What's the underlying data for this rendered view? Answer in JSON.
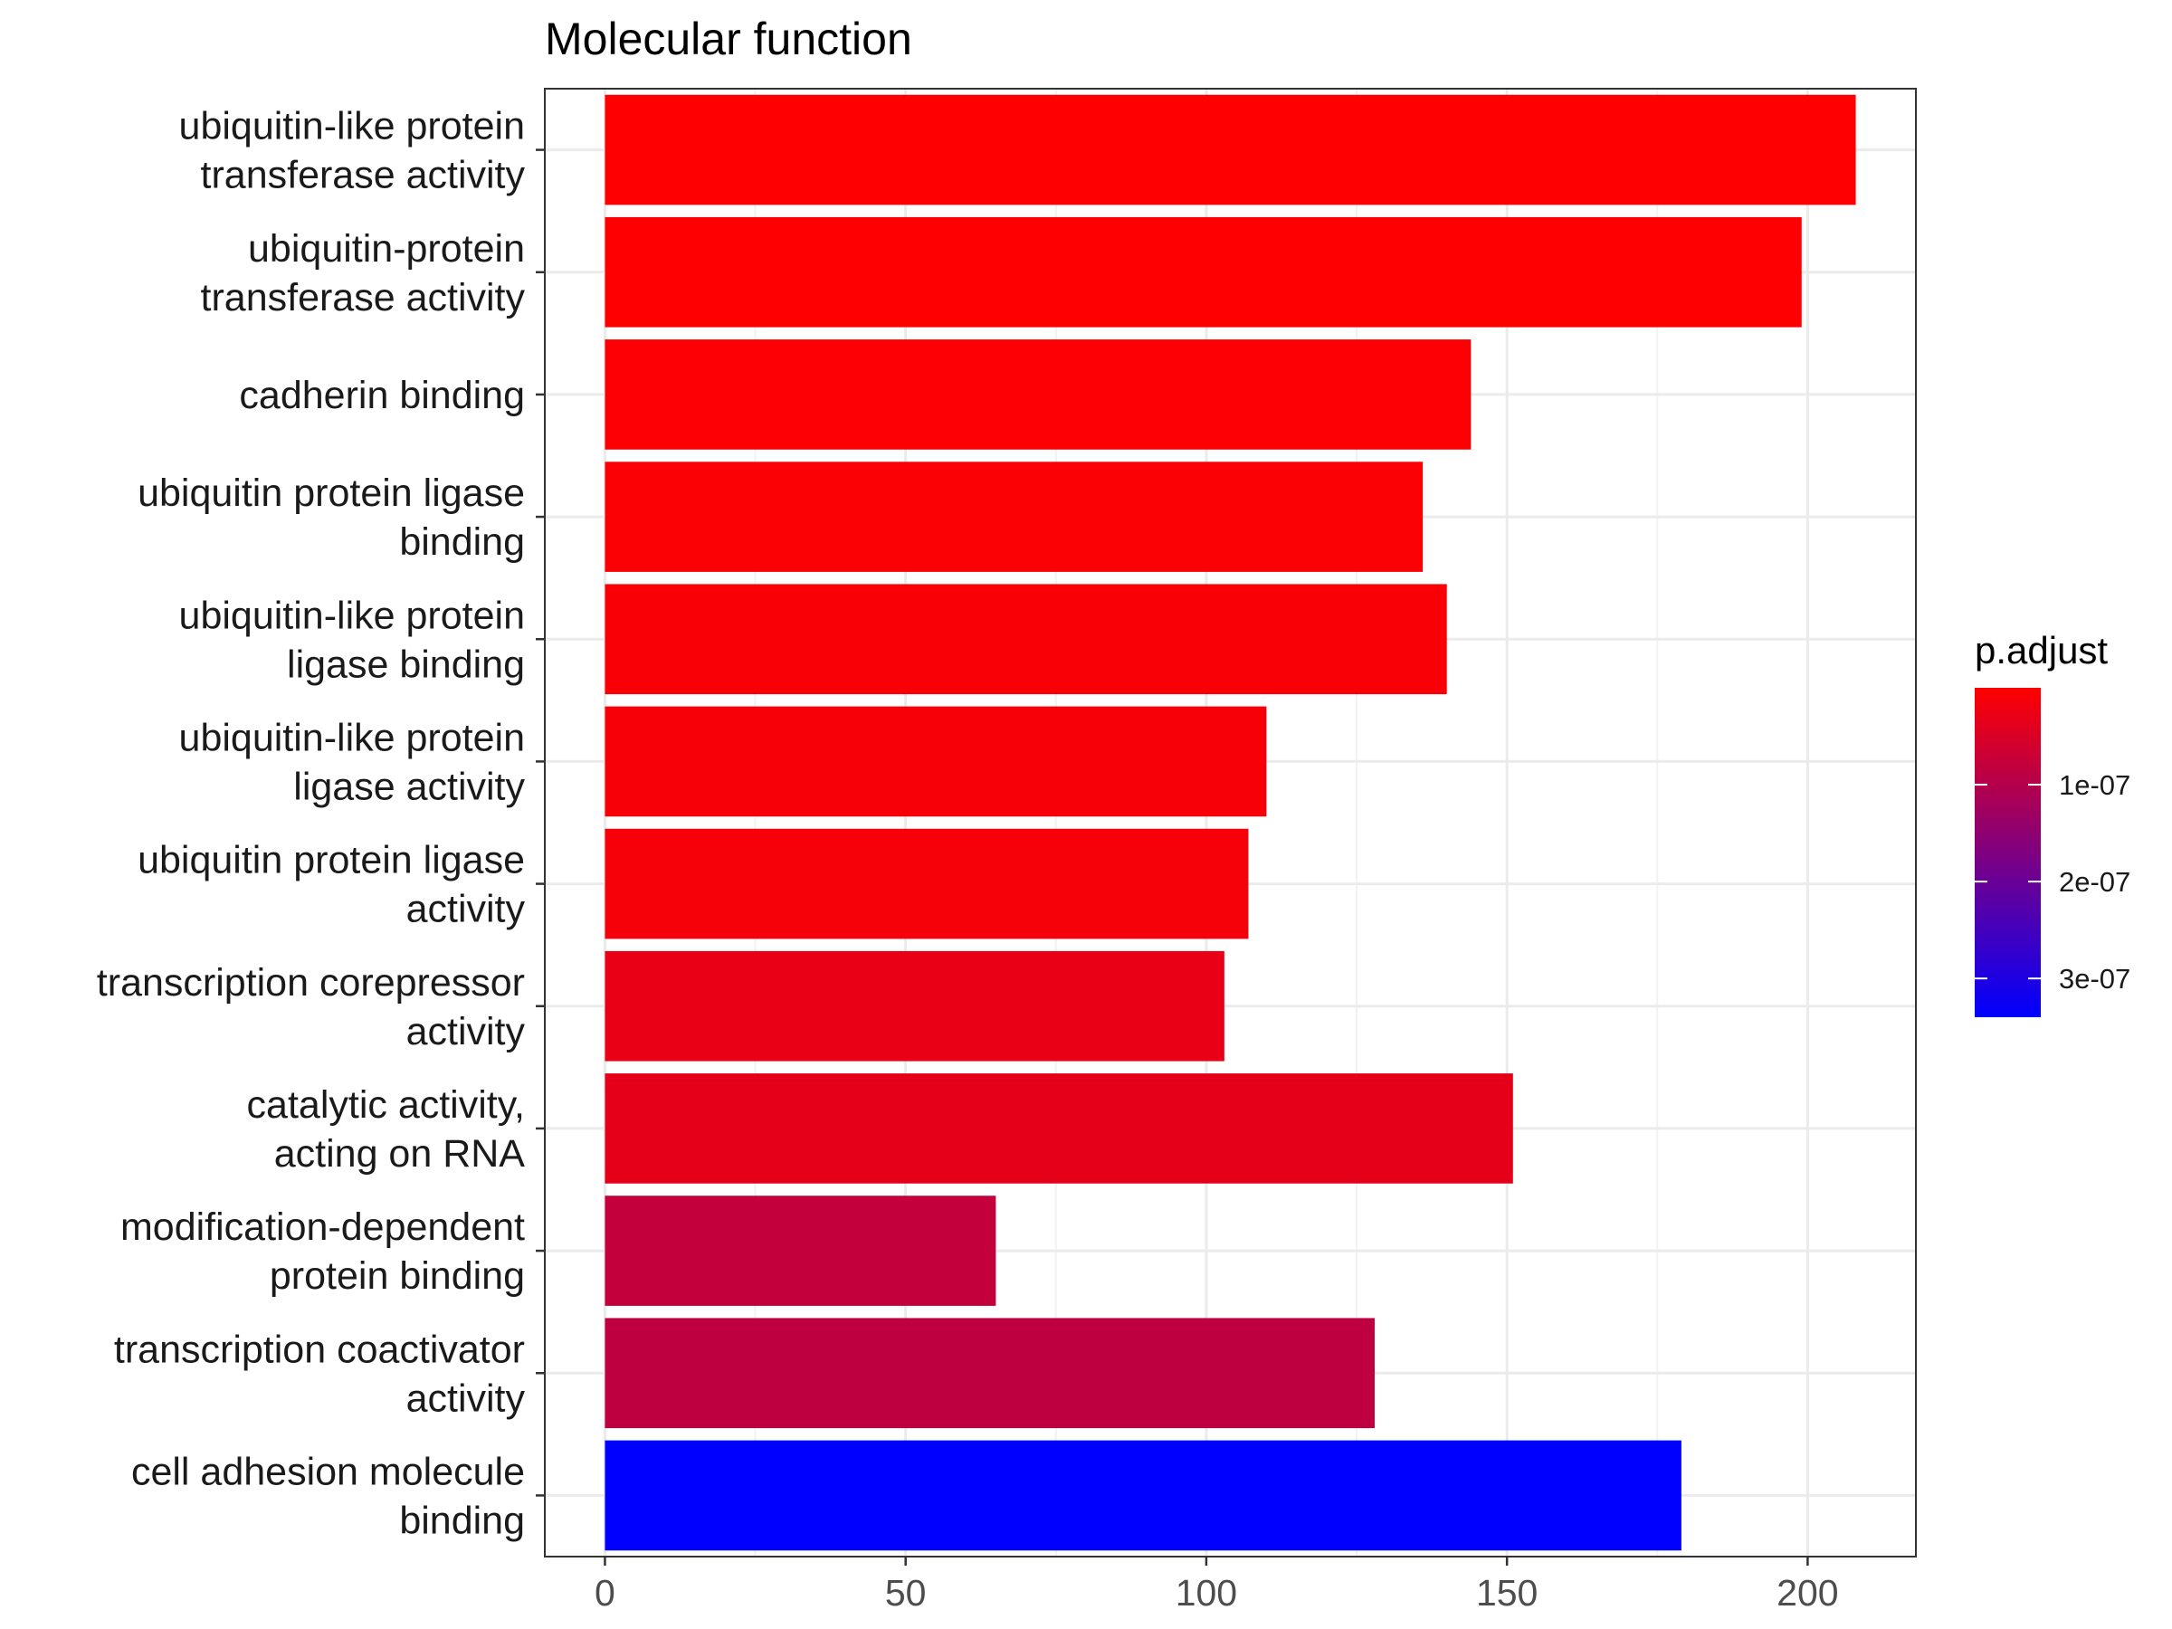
{
  "chart_data": {
    "type": "bar",
    "orientation": "horizontal",
    "title": "Molecular function",
    "xlabel": "",
    "ylabel": "",
    "xlim": [
      -10,
      218
    ],
    "x_ticks": [
      0,
      50,
      100,
      150,
      200
    ],
    "x_tick_labels": [
      "0",
      "50",
      "100",
      "150",
      "200"
    ],
    "grid": true,
    "categories": [
      [
        "ubiquitin-like protein",
        "transferase activity"
      ],
      [
        "ubiquitin-protein",
        "transferase activity"
      ],
      [
        "cadherin binding"
      ],
      [
        "ubiquitin protein ligase",
        "binding"
      ],
      [
        "ubiquitin-like protein",
        "ligase binding"
      ],
      [
        "ubiquitin-like protein",
        "ligase activity"
      ],
      [
        "ubiquitin protein ligase",
        "activity"
      ],
      [
        "transcription corepressor",
        "activity"
      ],
      [
        "catalytic activity,",
        "acting on RNA"
      ],
      [
        "modification-dependent",
        "protein binding"
      ],
      [
        "transcription coactivator",
        "activity"
      ],
      [
        "cell adhesion molecule",
        "binding"
      ]
    ],
    "values": [
      208,
      199,
      144,
      136,
      140,
      110,
      107,
      103,
      151,
      65,
      128,
      179
    ],
    "p_adjust": [
      1e-09,
      2e-09,
      4e-09,
      6e-09,
      8e-09,
      1e-08,
      1.2e-08,
      3e-08,
      3.5e-08,
      8e-08,
      8.5e-08,
      3.4e-07
    ],
    "legend": {
      "title": "p.adjust",
      "position": "right",
      "ticks": [
        1e-07,
        2e-07,
        3e-07
      ],
      "tick_labels": [
        "1e-07",
        "2e-07",
        "3e-07"
      ],
      "range": [
        0,
        3.4e-07
      ],
      "color_low": "#FF0000",
      "color_high": "#0000FF"
    }
  }
}
